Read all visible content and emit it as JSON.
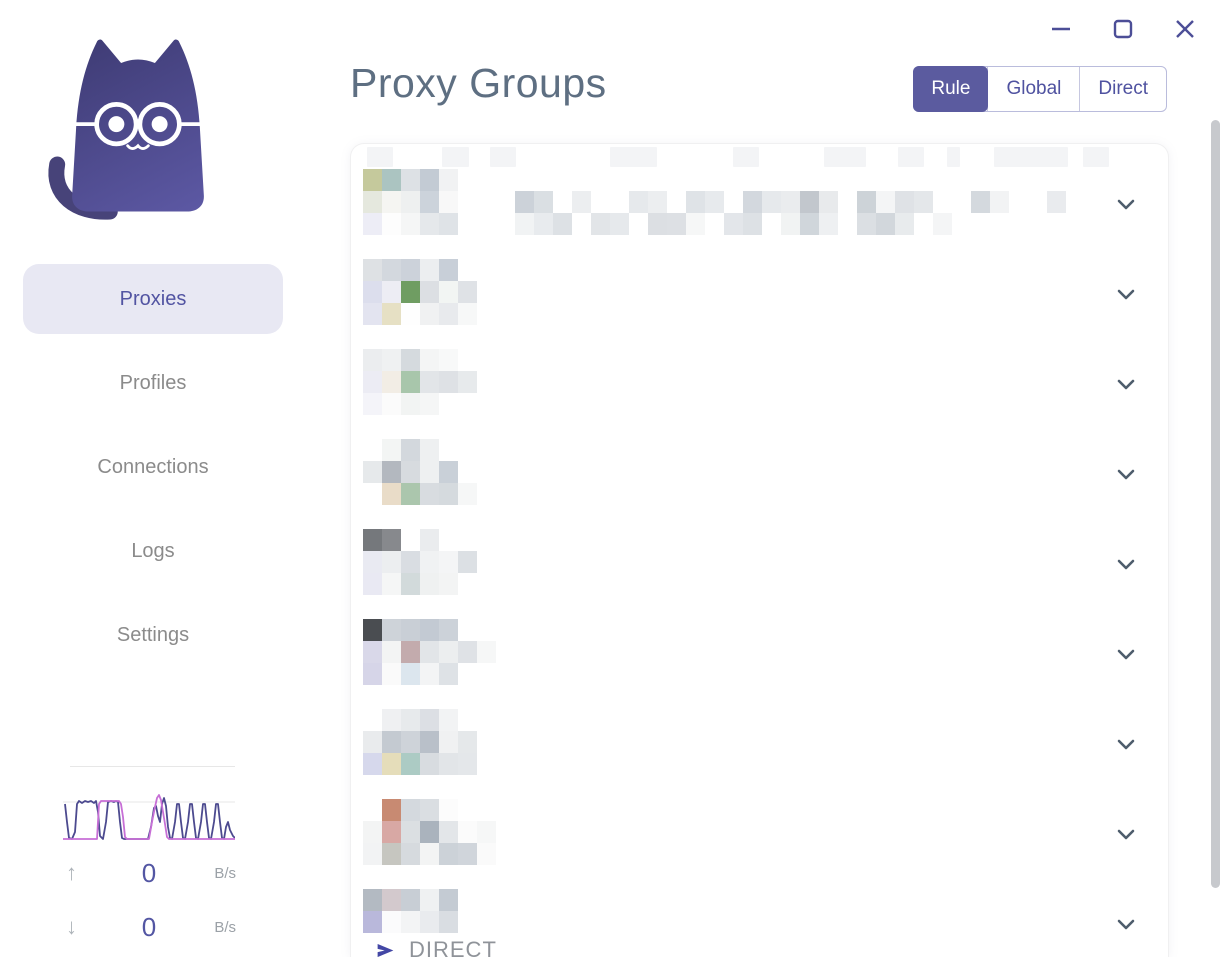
{
  "window_controls": {
    "minimize": "minimize",
    "maximize": "maximize",
    "close": "close"
  },
  "sidebar": {
    "logo": "clash-cat-logo",
    "nav": [
      {
        "label": "Proxies",
        "active": true
      },
      {
        "label": "Profiles",
        "active": false
      },
      {
        "label": "Connections",
        "active": false
      },
      {
        "label": "Logs",
        "active": false
      },
      {
        "label": "Settings",
        "active": false
      }
    ],
    "traffic": {
      "up": {
        "value": "0",
        "unit": "B/s"
      },
      "down": {
        "value": "0",
        "unit": "B/s"
      },
      "graph": {
        "width": 172,
        "height": 50,
        "gridline_y": 10,
        "gridline_color": "#ececec",
        "series": [
          {
            "name": "traffic-line-primary",
            "color": "#4c4a8f",
            "points": [
              [
                2,
                12
              ],
              [
                4,
                30
              ],
              [
                6,
                46
              ],
              [
                9,
                47
              ],
              [
                12,
                40
              ],
              [
                14,
                12
              ],
              [
                16,
                9
              ],
              [
                19,
                11
              ],
              [
                22,
                9
              ],
              [
                25,
                10
              ],
              [
                28,
                9
              ],
              [
                31,
                11
              ],
              [
                33,
                9
              ],
              [
                35,
                20
              ],
              [
                37,
                44
              ],
              [
                40,
                47
              ],
              [
                43,
                30
              ],
              [
                45,
                10
              ],
              [
                48,
                9
              ],
              [
                51,
                10
              ],
              [
                53,
                9
              ],
              [
                55,
                10
              ],
              [
                57,
                30
              ],
              [
                59,
                46
              ],
              [
                61,
                47
              ],
              [
                85,
                47
              ],
              [
                88,
                35
              ],
              [
                91,
                16
              ],
              [
                93,
                14
              ],
              [
                95,
                24
              ],
              [
                97,
                30
              ],
              [
                99,
                12
              ],
              [
                101,
                6
              ],
              [
                103,
                14
              ],
              [
                105,
                35
              ],
              [
                107,
                46
              ],
              [
                109,
                47
              ],
              [
                112,
                30
              ],
              [
                114,
                12
              ],
              [
                116,
                12
              ],
              [
                118,
                30
              ],
              [
                120,
                46
              ],
              [
                122,
                47
              ],
              [
                125,
                30
              ],
              [
                127,
                12
              ],
              [
                129,
                12
              ],
              [
                131,
                30
              ],
              [
                133,
                46
              ],
              [
                135,
                47
              ],
              [
                138,
                30
              ],
              [
                140,
                12
              ],
              [
                142,
                12
              ],
              [
                144,
                30
              ],
              [
                146,
                46
              ],
              [
                148,
                47
              ],
              [
                151,
                30
              ],
              [
                153,
                12
              ],
              [
                155,
                12
              ],
              [
                157,
                30
              ],
              [
                159,
                46
              ],
              [
                161,
                47
              ],
              [
                163,
                35
              ],
              [
                165,
                30
              ],
              [
                167,
                38
              ],
              [
                170,
                44
              ],
              [
                172,
                46
              ]
            ]
          },
          {
            "name": "traffic-line-secondary",
            "color": "#c76fd6",
            "points": [
              [
                0,
                47
              ],
              [
                34,
                47
              ],
              [
                36,
                12
              ],
              [
                38,
                9
              ],
              [
                56,
                9
              ],
              [
                58,
                12
              ],
              [
                60,
                25
              ],
              [
                62,
                45
              ],
              [
                64,
                47
              ],
              [
                86,
                47
              ],
              [
                89,
                30
              ],
              [
                92,
                15
              ],
              [
                94,
                6
              ],
              [
                96,
                3
              ],
              [
                98,
                8
              ],
              [
                100,
                20
              ],
              [
                102,
                32
              ],
              [
                104,
                45
              ],
              [
                106,
                47
              ],
              [
                172,
                47
              ]
            ]
          }
        ]
      }
    }
  },
  "header": {
    "title": "Proxy Groups",
    "modes": [
      {
        "label": "Rule",
        "active": true
      },
      {
        "label": "Global",
        "active": false
      },
      {
        "label": "Direct",
        "active": false
      }
    ]
  },
  "proxy_groups": {
    "top_strip": {
      "color": "#f3f4f6",
      "segments": [
        {
          "x": 16,
          "w": 26
        },
        {
          "x": 91,
          "w": 27
        },
        {
          "x": 139,
          "w": 26
        },
        {
          "x": 259,
          "w": 47
        },
        {
          "x": 382,
          "w": 26
        },
        {
          "x": 473,
          "w": 42
        },
        {
          "x": 547,
          "w": 26
        },
        {
          "x": 596,
          "w": 13
        },
        {
          "x": 643,
          "w": 74
        },
        {
          "x": 732,
          "w": 26
        }
      ]
    },
    "rows": [
      {
        "mosaic": [
          [
            "#c5c99c",
            "#abc4c1",
            "#dde1e5",
            "#c3cbd4",
            "#f1f2f3"
          ],
          [
            "#e5e8de",
            "#f5f5f2",
            "#eef0f0",
            "#ccd3db",
            "#f8f8f8",
            "",
            "",
            "",
            "#ccd2d9",
            "#dadfe3",
            "",
            "#eceef0",
            "",
            "",
            "#e6e9ec",
            "#eceef0",
            "",
            "#dfe3e7",
            "#e7eaed",
            "",
            "#d3d8de",
            "#e6e9ec",
            "#eaecee",
            "#c2c7cd",
            "#e8eaec",
            "",
            "#cdd3d8",
            "#f4f5f6",
            "#dfe2e6",
            "#e4e7ea",
            "",
            "",
            "#d4d9de",
            "#f2f3f4",
            "",
            "",
            "#e9ebee"
          ],
          [
            "#ededf6",
            "#fdfdfd",
            "#f5f6f6",
            "#e5e8eb",
            "#dfe3e7",
            "",
            "",
            "",
            "#f1f3f4",
            "#e8ebee",
            "#dde1e5",
            "",
            "#e2e5e8",
            "#e6e9ec",
            "",
            "#dcdfe3",
            "#dde0e4",
            "#f6f7f7",
            "",
            "#e3e6ea",
            "#dde1e5",
            "",
            "#f1f3f3",
            "#d0d6db",
            "#eef0f2",
            "",
            "#dbdfe3",
            "#d2d7dc",
            "#e8ebed",
            "",
            "#f4f5f6"
          ]
        ]
      },
      {
        "mosaic": [
          [
            "#dee1e4",
            "#d3d8de",
            "#ccd2da",
            "#eceef0",
            "#c8cfd8"
          ],
          [
            "#dcdeed",
            "#ededf4",
            "#6f9d62",
            "#dcdfe3",
            "#f2f5f3",
            "#dfe2e6"
          ],
          [
            "#e3e4f0",
            "#e6e0c4",
            "#fefefe",
            "#f0f1f2",
            "#e8eaed",
            "#f7f8f8"
          ]
        ]
      },
      {
        "mosaic": [
          [
            "#ebedef",
            "#eff1f2",
            "#d5dade",
            "#f4f5f5",
            "#f8f9f9"
          ],
          [
            "#ececf4",
            "#f2ede5",
            "#a8c6ab",
            "#e2e5e8",
            "#dee1e5",
            "#e7eaec"
          ],
          [
            "#f4f4f9",
            "#fbfbfb",
            "#f2f4f3",
            "#f5f6f6"
          ]
        ]
      },
      {
        "mosaic": [
          [
            "",
            "#f3f5f4",
            "#d3d8dd",
            "#eef0f1"
          ],
          [
            "#e6e9eb",
            "#b3b8bf",
            "#d7dbdf",
            "#eef0f1",
            "#c9d0d8"
          ],
          [
            "",
            "#e9dcc8",
            "#abc6ad",
            "#d8dce0",
            "#d5dade",
            "#f6f7f7"
          ]
        ]
      },
      {
        "mosaic": [
          [
            "#75787c",
            "#87898d",
            "",
            "#eaecee"
          ],
          [
            "#e9eaf2",
            "#eceef0",
            "#d9dde2",
            "#f0f2f3",
            "#f4f5f6",
            "#dce0e4"
          ],
          [
            "#e9e9f3",
            "#f5f6f6",
            "#d2dadb",
            "#eff1f1",
            "#f3f4f4"
          ]
        ]
      },
      {
        "mosaic": [
          [
            "#4a4d51",
            "#ced3d9",
            "#c9cfd6",
            "#c3cad3",
            "#ccd2d9"
          ],
          [
            "#d9d8e9",
            "#f3f4f4",
            "#c3abad",
            "#e2e5e8",
            "#eceeef",
            "#dfe2e6",
            "#f6f7f7"
          ],
          [
            "#d6d5e8",
            "#fafafa",
            "#dce6ee",
            "#f3f4f5",
            "#dee2e6"
          ]
        ]
      },
      {
        "mosaic": [
          [
            "",
            "#eff0f2",
            "#e7eaec",
            "#dcdfe4",
            "#f2f3f4"
          ],
          [
            "#e9ebed",
            "#c4cad1",
            "#ced3d9",
            "#b9c0c9",
            "#f0f1f2",
            "#e5e8ea"
          ],
          [
            "#d6d8ec",
            "#e5ddba",
            "#accbc4",
            "#d8dce0",
            "#e2e5e8",
            "#e4e7ea"
          ]
        ]
      },
      {
        "mosaic": [
          [
            "",
            "#c88a72",
            "#d4d9de",
            "#dadee2",
            "#fcfcfc"
          ],
          [
            "#f3f4f4",
            "#d8a8a4",
            "#dbdfe2",
            "#aab3bd",
            "#e3e6e9",
            "#fbfbfb",
            "#f6f7f7"
          ],
          [
            "#f2f3f4",
            "#c6c6c0",
            "#d6dade",
            "#f3f4f4",
            "#ccd2d8",
            "#d0d5db",
            "#fafafa"
          ]
        ]
      },
      {
        "mosaic": [
          [
            "#b3bac2",
            "#d3c9cd",
            "#c8ced5",
            "#eff1f2",
            "#c4cbd3"
          ],
          [
            "#b9b8db",
            "#fbfbfc",
            "#f3f4f5",
            "#e9ebee",
            "#d9dde2"
          ]
        ],
        "selected": "DIRECT"
      }
    ]
  },
  "colors": {
    "accent": "#5b5b9f",
    "accent_text": "#5254a2",
    "title": "#5e6f82",
    "nav_inactive": "#8b8b8b",
    "chevron": "#4e5d6c",
    "selected_text": "#8f9399",
    "selected_arrow": "#4347a5",
    "window_control": "#4c4e97",
    "scrollbar": "#c7c9cd"
  }
}
